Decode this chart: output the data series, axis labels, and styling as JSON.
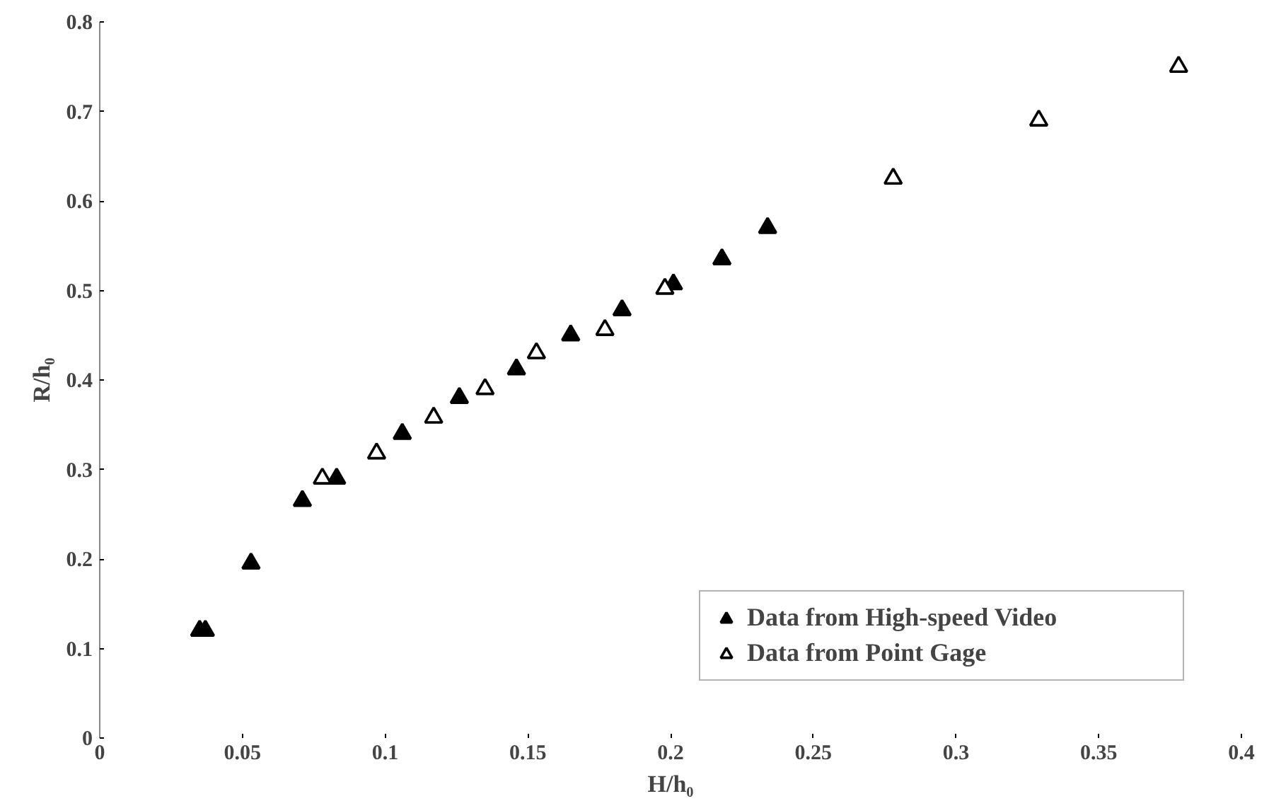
{
  "chart_data": {
    "type": "scatter",
    "xlabel": "H/h₀",
    "ylabel": "R/h₀",
    "xlim": [
      0,
      0.4
    ],
    "xticks": [
      0,
      0.05,
      0.1,
      0.15,
      0.2,
      0.25,
      0.3,
      0.35,
      0.4
    ],
    "ylim": [
      0,
      0.8
    ],
    "yticks": [
      0,
      0.1,
      0.2,
      0.3,
      0.4,
      0.5,
      0.6,
      0.7,
      0.8
    ],
    "grid": false,
    "legend": "bottom right",
    "marker": "triangle",
    "series": [
      {
        "name": "Data from High-speed Video",
        "color": "#000000",
        "x": [
          0.035,
          0.037,
          0.053,
          0.071,
          0.083,
          0.106,
          0.126,
          0.146,
          0.165,
          0.183,
          0.201,
          0.218,
          0.234
        ],
        "values": [
          0.12,
          0.12,
          0.195,
          0.265,
          0.29,
          0.34,
          0.38,
          0.412,
          0.45,
          0.478,
          0.507,
          0.535,
          0.57
        ]
      },
      {
        "name": "Data from Point Gage",
        "color": "#ffffff",
        "x": [
          0.078,
          0.097,
          0.117,
          0.135,
          0.153,
          0.177,
          0.198,
          0.278,
          0.329,
          0.378
        ],
        "values": [
          0.29,
          0.318,
          0.358,
          0.39,
          0.43,
          0.456,
          0.502,
          0.625,
          0.69,
          0.75
        ]
      }
    ]
  }
}
